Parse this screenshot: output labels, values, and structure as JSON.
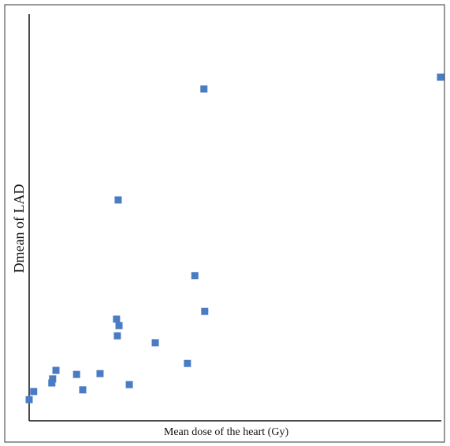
{
  "chart_data": {
    "type": "scatter",
    "x_label": "Mean dose of the heart (Gy)",
    "y_label": "Dmean of LAD",
    "xlim": [
      0,
      100
    ],
    "ylim": [
      0,
      100
    ],
    "x": [
      0,
      1.1,
      5.5,
      5.7,
      6.5,
      11.5,
      13.0,
      17.2,
      21.2,
      21.8,
      21.4,
      21.6,
      24.3,
      30.6,
      38.4,
      40.2,
      42.6,
      42.4,
      99.8
    ],
    "values": [
      5.2,
      7.2,
      9.3,
      10.3,
      12.4,
      11.4,
      7.6,
      11.6,
      25.0,
      23.4,
      20.9,
      54.3,
      8.9,
      19.2,
      14.1,
      35.7,
      26.9,
      81.6,
      84.5
    ],
    "color": "#4a7cc4"
  }
}
